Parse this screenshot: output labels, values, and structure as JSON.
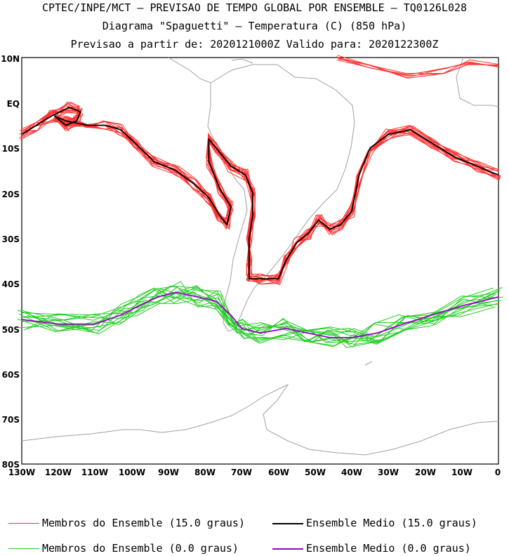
{
  "header": {
    "line1": "CPTEC/INPE/MCT — PREVISAO DE TEMPO GLOBAL POR ENSEMBLE — TQ0126L028",
    "line2": "Diagrama \"Spaguetti\" — Temperatura (C) (850 hPa)",
    "line3": "Previsao a partir de: 2020121000Z  Valido para: 2020122300Z"
  },
  "axes": {
    "lat_labels": [
      "10N",
      "EQ",
      "10S",
      "20S",
      "30S",
      "40S",
      "50S",
      "60S",
      "70S",
      "80S"
    ],
    "lon_labels": [
      "130W",
      "120W",
      "110W",
      "100W",
      "90W",
      "80W",
      "70W",
      "60W",
      "50W",
      "40W",
      "30W",
      "20W",
      "10W",
      "0"
    ]
  },
  "map": {
    "lon_range": [
      -130,
      0
    ],
    "lat_range": [
      -80,
      10
    ],
    "land_color": "#a0a0a0"
  },
  "contours": {
    "warm_members": {
      "color": "#ff3333",
      "level": "15.0 graus"
    },
    "warm_mean": {
      "color": "#000000",
      "level": "15.0 graus"
    },
    "cold_members": {
      "color": "#22cc22",
      "level": "0.0 graus"
    },
    "cold_mean": {
      "color": "#9900cc",
      "level": "0.0 graus"
    }
  },
  "legend": {
    "warm_members_label": "Membros do Ensemble (15.0 graus)",
    "warm_mean_label": "Ensemble Medio (15.0 graus)",
    "cold_members_label": "Membros do Ensemble (0.0 graus)",
    "cold_mean_label": "Ensemble Medio (0.0 graus)"
  }
}
